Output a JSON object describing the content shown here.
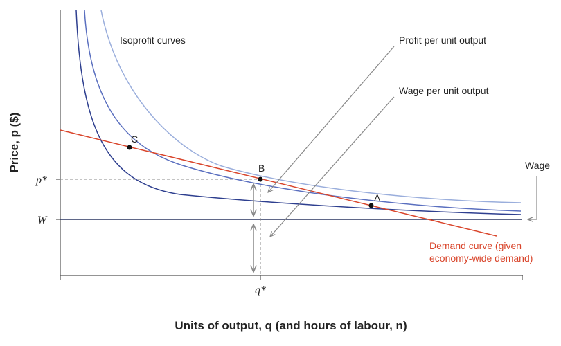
{
  "axes": {
    "ylabel": "Price, p ($)",
    "xlabel": "Units of output, q (and hours of labour, n)",
    "y_ticks": [
      "p*",
      "W"
    ],
    "x_ticks": [
      "q*"
    ]
  },
  "points": [
    "A",
    "B",
    "C"
  ],
  "labels": {
    "isoprofit": "Isoprofit curves",
    "profit_per_unit": "Profit per unit output",
    "wage_per_unit": "Wage per unit output",
    "wage": "Wage",
    "demand_line1": "Demand curve (given",
    "demand_line2": "economy-wide demand)"
  },
  "colors": {
    "demand": "#d9452b",
    "isoprofit_light": "#9aaedc",
    "isoprofit_mid": "#5a6fbf",
    "isoprofit_dark": "#2e3f8f",
    "wage_line": "#2a3560",
    "arrows": "#888888"
  }
}
